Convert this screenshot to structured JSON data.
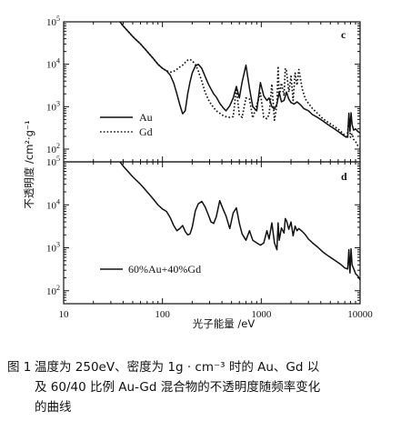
{
  "chart_data": [
    {
      "panel": "c",
      "type": "line",
      "scale": {
        "x": "log",
        "y": "log"
      },
      "xlim": [
        10,
        10000
      ],
      "ylim": [
        50,
        100000
      ],
      "yticks": [
        {
          "base": "10",
          "exp": "2"
        },
        {
          "base": "10",
          "exp": "3"
        },
        {
          "base": "10",
          "exp": "4"
        },
        {
          "base": "10",
          "exp": "5"
        }
      ],
      "legend_position": "left",
      "series": [
        {
          "name": "Au",
          "style": "solid",
          "x": [
            35,
            40,
            50,
            60,
            70,
            80,
            90,
            100,
            110,
            120,
            130,
            140,
            150,
            160,
            170,
            180,
            190,
            200,
            215,
            230,
            250,
            270,
            290,
            310,
            330,
            350,
            380,
            410,
            440,
            480,
            520,
            560,
            600,
            640,
            700,
            760,
            820,
            900,
            980,
            1060,
            1140,
            1200,
            1280,
            1360,
            1440,
            1520,
            1600,
            1700,
            1800,
            1900,
            2000,
            2150,
            2300,
            2500,
            2700,
            3000,
            3300,
            3700,
            4200,
            4800,
            5500,
            6300,
            7000,
            7500,
            7700,
            7900,
            8100,
            8300,
            8600,
            9000,
            9500,
            10000
          ],
          "y": [
            120000,
            80000,
            45000,
            30000,
            20000,
            14000,
            10000,
            8000,
            7000,
            5500,
            3600,
            2000,
            1100,
            680,
            800,
            2000,
            3800,
            6200,
            9000,
            10000,
            8000,
            5200,
            3500,
            2600,
            2000,
            1700,
            1200,
            950,
            800,
            1050,
            1600,
            3000,
            1600,
            3800,
            9500,
            2700,
            1000,
            800,
            3700,
            1800,
            1400,
            1600,
            1000,
            880,
            1150,
            2200,
            1300,
            1400,
            2200,
            1500,
            1250,
            1150,
            1300,
            1100,
            900,
            800,
            650,
            560,
            460,
            370,
            300,
            240,
            200,
            190,
            700,
            260,
            720,
            380,
            280,
            300,
            260,
            240
          ]
        },
        {
          "name": "Gd",
          "style": "dotted",
          "x": [
            35,
            40,
            50,
            60,
            70,
            80,
            90,
            100,
            110,
            120,
            130,
            140,
            150,
            160,
            170,
            180,
            190,
            200,
            215,
            230,
            250,
            270,
            290,
            310,
            330,
            350,
            380,
            410,
            440,
            480,
            520,
            560,
            600,
            640,
            700,
            760,
            820,
            900,
            980,
            1060,
            1140,
            1200,
            1280,
            1360,
            1440,
            1480,
            1520,
            1600,
            1700,
            1750,
            1800,
            1900,
            2000,
            2100,
            2200,
            2300,
            2400,
            2600,
            2800,
            3000,
            3300,
            3700,
            4200,
            4800,
            5500,
            6300,
            7000,
            7400,
            7700,
            8000,
            8300,
            8600,
            9000,
            9500,
            10000
          ],
          "y": [
            120000,
            80000,
            45000,
            30000,
            20000,
            14000,
            10000,
            8000,
            7000,
            6500,
            6800,
            7600,
            8600,
            9500,
            11000,
            12500,
            13000,
            12000,
            10000,
            7000,
            4000,
            2200,
            1500,
            1150,
            950,
            800,
            700,
            620,
            580,
            560,
            580,
            2700,
            640,
            560,
            1600,
            1500,
            540,
            1100,
            2100,
            560,
            520,
            650,
            3400,
            480,
            1100,
            9000,
            1700,
            3600,
            1800,
            8000,
            7000,
            2200,
            5200,
            1400,
            6200,
            3200,
            7500,
            2600,
            1500,
            1200,
            900,
            700,
            520,
            420,
            340,
            270,
            210,
            180,
            550,
            190,
            230,
            170,
            150,
            120,
            110
          ]
        }
      ]
    },
    {
      "panel": "d",
      "type": "line",
      "scale": {
        "x": "log",
        "y": "log"
      },
      "xlim": [
        10,
        10000
      ],
      "ylim": [
        50,
        100000
      ],
      "xticks": [
        "10",
        "100",
        "1000",
        "10000"
      ],
      "yticks": [
        {
          "base": "10",
          "exp": "2"
        },
        {
          "base": "10",
          "exp": "3"
        },
        {
          "base": "10",
          "exp": "4"
        },
        {
          "base": "10",
          "exp": "5"
        }
      ],
      "legend_position": "bottom-left",
      "series": [
        {
          "name": "60%Au+40%Gd",
          "style": "solid",
          "x": [
            35,
            40,
            50,
            60,
            70,
            80,
            90,
            100,
            110,
            120,
            130,
            140,
            150,
            160,
            170,
            180,
            190,
            200,
            215,
            230,
            250,
            270,
            290,
            310,
            330,
            350,
            380,
            410,
            440,
            480,
            520,
            560,
            600,
            640,
            700,
            760,
            820,
            900,
            980,
            1060,
            1140,
            1200,
            1280,
            1360,
            1440,
            1480,
            1520,
            1600,
            1700,
            1750,
            1800,
            1900,
            2000,
            2100,
            2200,
            2300,
            2400,
            2600,
            2800,
            3000,
            3300,
            3700,
            4200,
            4800,
            5500,
            6300,
            7000,
            7500,
            7700,
            7900,
            8100,
            8300,
            8600,
            9000,
            9500,
            10000
          ],
          "y": [
            120000,
            80000,
            45000,
            30000,
            20000,
            14000,
            10000,
            8000,
            7000,
            5000,
            3300,
            2500,
            2800,
            3300,
            2400,
            2000,
            2100,
            3000,
            7200,
            10500,
            12000,
            9000,
            6000,
            4000,
            3700,
            5200,
            12500,
            8000,
            5500,
            2800,
            6500,
            8500,
            3700,
            2100,
            1500,
            2500,
            1500,
            1300,
            1150,
            1300,
            2500,
            1600,
            3800,
            1300,
            900,
            3800,
            1500,
            2900,
            2200,
            4800,
            4300,
            2700,
            4000,
            1900,
            3200,
            2500,
            2800,
            2400,
            2000,
            1600,
            1300,
            1050,
            800,
            640,
            520,
            420,
            340,
            320,
            900,
            260,
            950,
            400,
            330,
            250,
            220,
            180
          ]
        }
      ]
    }
  ],
  "xlabel": "光子能量 /eV",
  "ylabel": "不透明度 /cm²·g⁻¹",
  "colors": {
    "ink": "#111111",
    "background": "#ffffff"
  },
  "caption": {
    "number": "图 1",
    "line1": "温度为 250eV、密度为 1g · cm⁻³ 时的 Au、Gd 以",
    "line2": "及 60/40 比例 Au-Gd 混合物的不透明度随频率变化",
    "line3": "的曲线"
  }
}
